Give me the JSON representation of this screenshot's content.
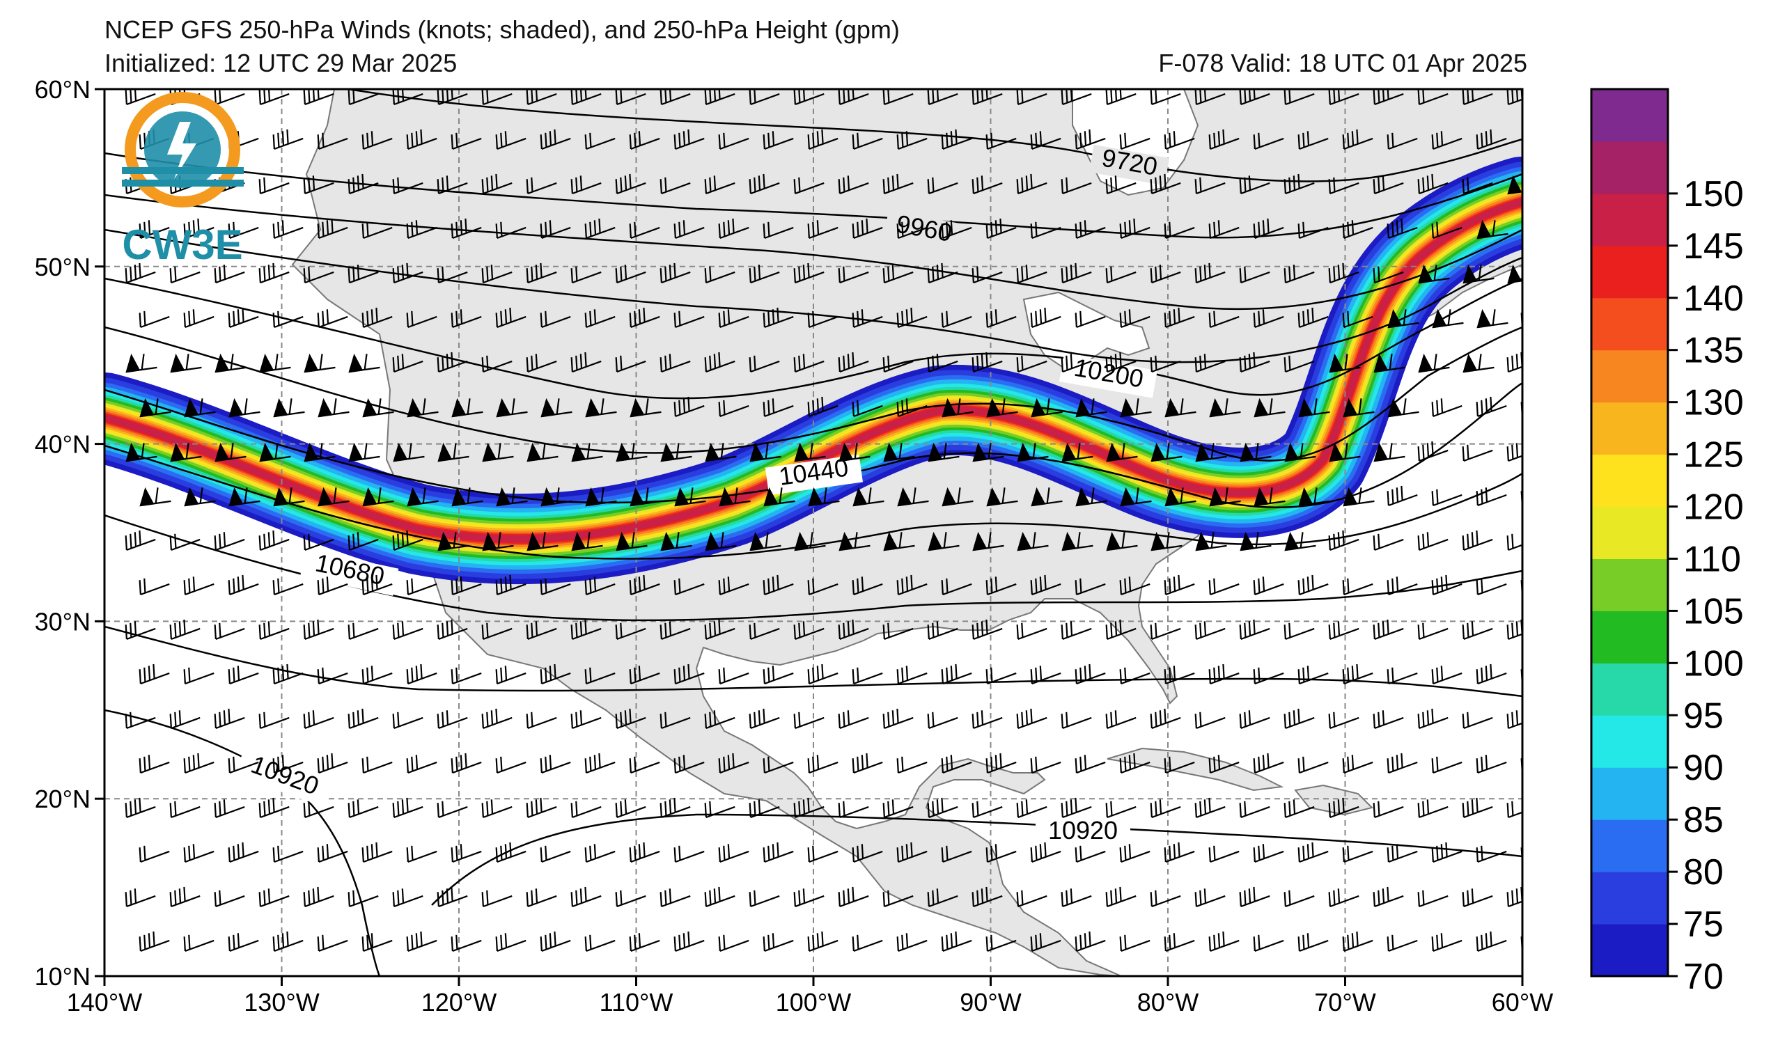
{
  "header": {
    "title": "NCEP GFS 250-hPa Winds (knots; shaded), and 250-hPa Height (gpm)",
    "initialized": "Initialized: 12 UTC 29 Mar 2025",
    "valid": "F-078  Valid: 18 UTC 01 Apr 2025"
  },
  "logo": {
    "text": "CW3E",
    "colors": {
      "orange": "#f39a1f",
      "teal": "#1f8fa8"
    }
  },
  "map": {
    "extent": {
      "lon": [
        -140,
        -60
      ],
      "lat": [
        10,
        60
      ]
    },
    "lat_labels": [
      "60°N",
      "50°N",
      "40°N",
      "30°N",
      "20°N",
      "10°N"
    ],
    "lon_labels": [
      "140°W",
      "130°W",
      "120°W",
      "110°W",
      "100°W",
      "90°W",
      "80°W",
      "70°W",
      "60°W"
    ],
    "land_color": "#e6e6e6",
    "ocean_color": "#ffffff",
    "height_contour_labels": [
      "9720",
      "9960",
      "10200",
      "10440",
      "10680",
      "10920",
      "10920"
    ]
  },
  "colorbar": {
    "ticks": [
      "70",
      "75",
      "80",
      "85",
      "90",
      "95",
      "100",
      "105",
      "110",
      "120",
      "125",
      "130",
      "135",
      "140",
      "145",
      "150"
    ],
    "colors": [
      "#1c1cc4",
      "#2a3ee0",
      "#2a6cf2",
      "#24b4f2",
      "#24e8e8",
      "#27d8a8",
      "#22bb22",
      "#79cd27",
      "#e8e824",
      "#ffe21e",
      "#f9b51e",
      "#f78520",
      "#f44e1e",
      "#ea201e",
      "#c82046",
      "#a52266",
      "#7f2a8e"
    ]
  }
}
